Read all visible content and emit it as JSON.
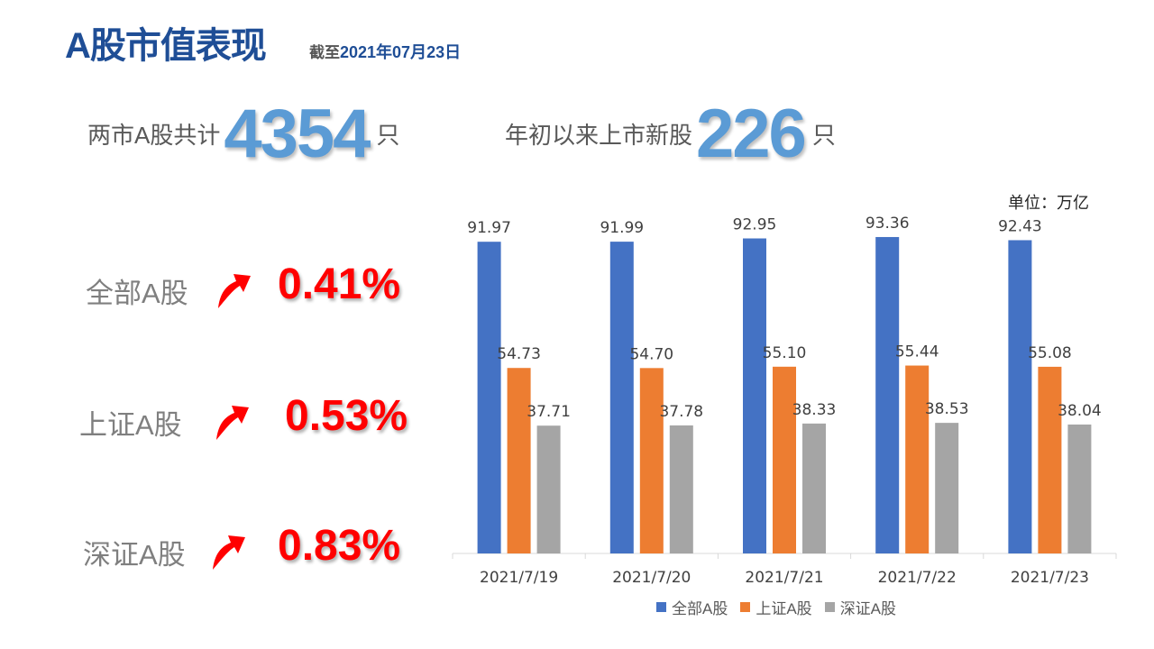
{
  "header": {
    "title": "A股市值表现",
    "subtitle_prefix": "截至",
    "subtitle_date": "2021年07月23日"
  },
  "stats": [
    {
      "label": "两市A股共计",
      "value": "4354",
      "unit": "只"
    },
    {
      "label": "年初以来上市新股",
      "value": "226",
      "unit": "只"
    }
  ],
  "changes": [
    {
      "label": "全部A股",
      "value": "0.41%"
    },
    {
      "label": "上证A股",
      "value": "0.53%"
    },
    {
      "label": "深证A股",
      "value": "0.83%"
    }
  ],
  "colors": {
    "accent": "#1f4e96",
    "big_number": "#5b9bd5",
    "up": "#ff0000",
    "series": [
      "#4472c4",
      "#ed7d31",
      "#a5a5a5"
    ]
  },
  "chart_data": {
    "type": "bar",
    "title": "",
    "unit_label": "单位：万亿",
    "categories": [
      "2021/7/19",
      "2021/7/20",
      "2021/7/21",
      "2021/7/22",
      "2021/7/23"
    ],
    "series": [
      {
        "name": "全部A股",
        "values": [
          91.97,
          91.99,
          92.95,
          93.36,
          92.43
        ]
      },
      {
        "name": "上证A股",
        "values": [
          54.73,
          54.7,
          55.1,
          55.44,
          55.08
        ]
      },
      {
        "name": "深证A股",
        "values": [
          37.71,
          37.78,
          38.33,
          38.53,
          38.04
        ]
      }
    ],
    "ylim": [
      0,
      100
    ],
    "grid": false,
    "legend": "bottom",
    "data_labels": true
  }
}
